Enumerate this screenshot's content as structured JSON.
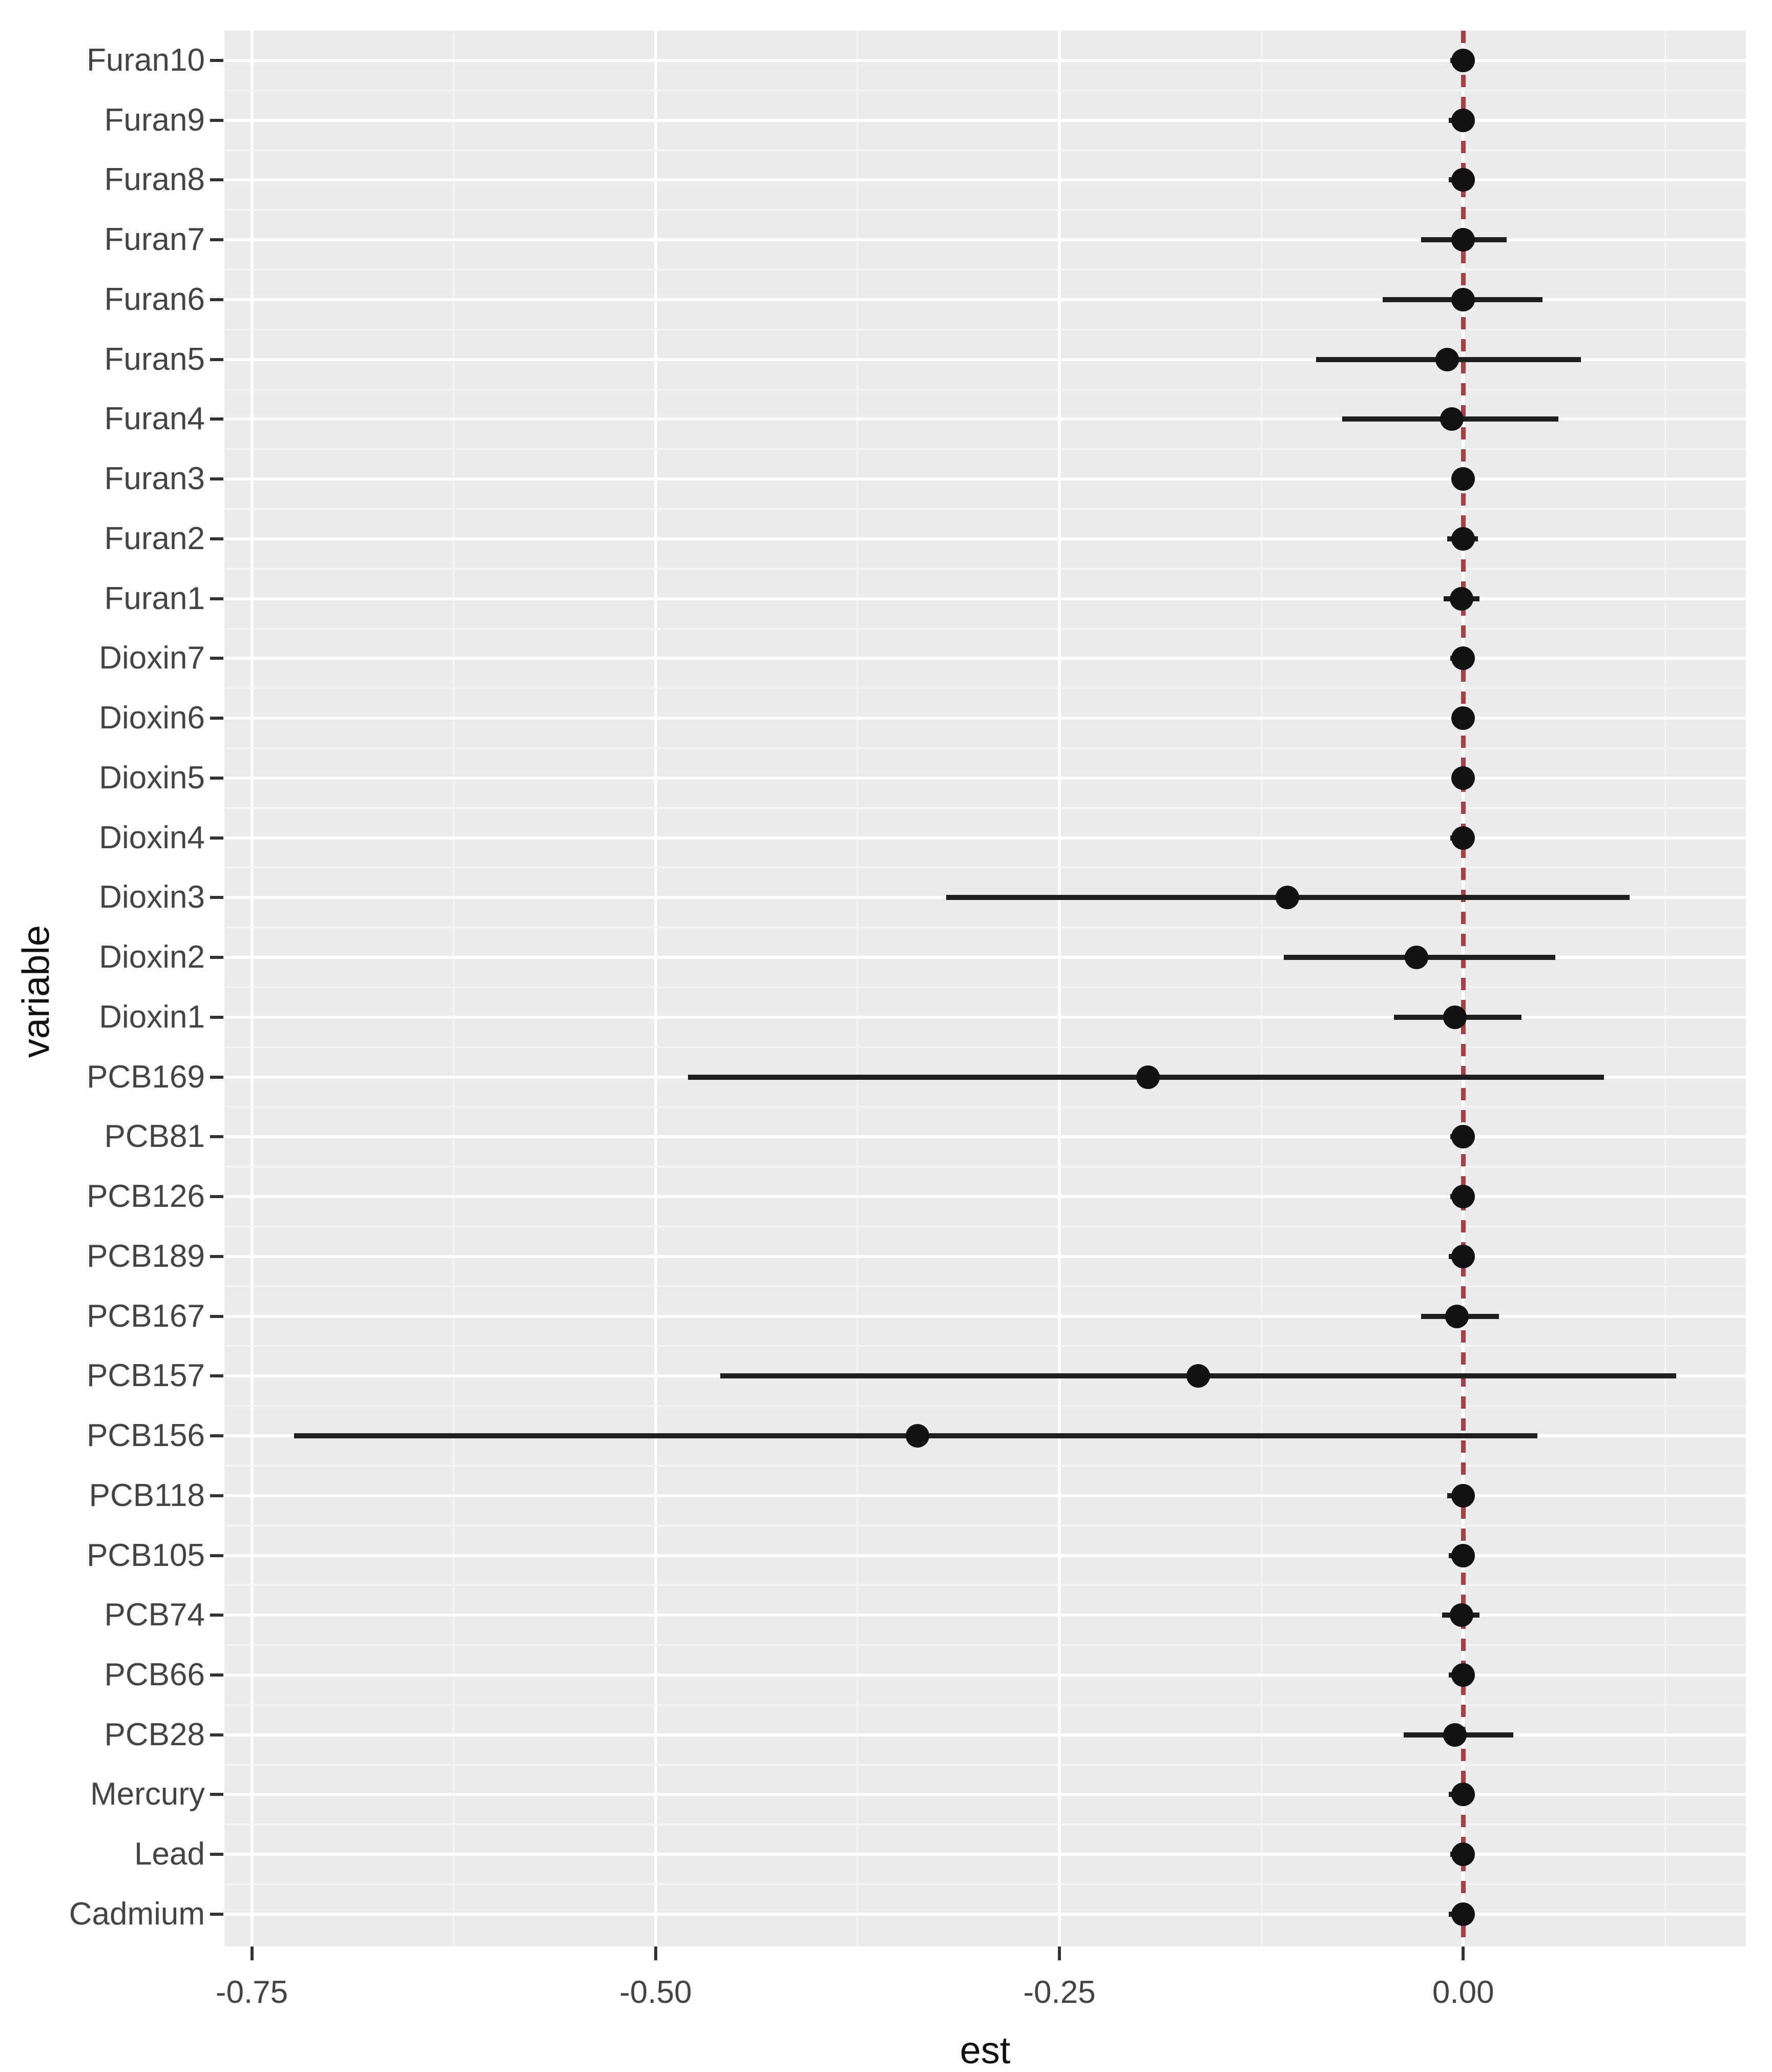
{
  "colors": {
    "page_bg": "#FFFFFF",
    "panel_bg": "#EBEBEB",
    "grid_major": "#FFFFFF",
    "grid_minor": "#F5F5F5",
    "marker": "#121212",
    "ci_line": "#1E1E1E",
    "reference_line": "#A64044",
    "tick_mark": "#333333",
    "tick_text": "#444444",
    "axis_title_text": "#111111"
  },
  "chart_data": {
    "type": "scatter",
    "subtype": "forest-plot-dot-with-error-bars",
    "title": "",
    "xlabel": "est",
    "ylabel": "variable",
    "xlim": [
      -0.767,
      0.175
    ],
    "grid": "on",
    "legend": "none",
    "x_tick_values": [
      -0.75,
      -0.5,
      -0.25,
      0.0
    ],
    "x_tick_labels": [
      "-0.75",
      "-0.50",
      "-0.25",
      "0.00"
    ],
    "x_minor_gridlines": [
      -0.625,
      -0.375,
      -0.125,
      0.125
    ],
    "reference_line_x": 0,
    "reference_line_style": "dashed",
    "categories_top_to_bottom": [
      "Furan10",
      "Furan9",
      "Furan8",
      "Furan7",
      "Furan6",
      "Furan5",
      "Furan4",
      "Furan3",
      "Furan2",
      "Furan1",
      "Dioxin7",
      "Dioxin6",
      "Dioxin5",
      "Dioxin4",
      "Dioxin3",
      "Dioxin2",
      "Dioxin1",
      "PCB169",
      "PCB81",
      "PCB126",
      "PCB189",
      "PCB167",
      "PCB157",
      "PCB156",
      "PCB118",
      "PCB105",
      "PCB74",
      "PCB66",
      "PCB28",
      "Mercury",
      "Lead",
      "Cadmium"
    ],
    "series": [
      {
        "name": "est",
        "points": [
          {
            "variable": "Furan10",
            "est": 0.0,
            "lo": -0.008,
            "hi": 0.007
          },
          {
            "variable": "Furan9",
            "est": 0.0,
            "lo": -0.009,
            "hi": 0.007
          },
          {
            "variable": "Furan8",
            "est": 0.0,
            "lo": -0.009,
            "hi": 0.007
          },
          {
            "variable": "Furan7",
            "est": 0.0,
            "lo": -0.026,
            "hi": 0.027
          },
          {
            "variable": "Furan6",
            "est": 0.0,
            "lo": -0.05,
            "hi": 0.049
          },
          {
            "variable": "Furan5",
            "est": -0.01,
            "lo": -0.091,
            "hi": 0.073
          },
          {
            "variable": "Furan4",
            "est": -0.007,
            "lo": -0.075,
            "hi": 0.059
          },
          {
            "variable": "Furan3",
            "est": 0.0,
            "lo": -0.007,
            "hi": 0.005
          },
          {
            "variable": "Furan2",
            "est": 0.0,
            "lo": -0.01,
            "hi": 0.009
          },
          {
            "variable": "Furan1",
            "est": -0.001,
            "lo": -0.012,
            "hi": 0.01
          },
          {
            "variable": "Dioxin7",
            "est": 0.0,
            "lo": -0.008,
            "hi": 0.006
          },
          {
            "variable": "Dioxin6",
            "est": 0.0,
            "lo": -0.007,
            "hi": 0.006
          },
          {
            "variable": "Dioxin5",
            "est": 0.0,
            "lo": -0.007,
            "hi": 0.006
          },
          {
            "variable": "Dioxin4",
            "est": 0.0,
            "lo": -0.008,
            "hi": 0.006
          },
          {
            "variable": "Dioxin3",
            "est": -0.109,
            "lo": -0.32,
            "hi": 0.103
          },
          {
            "variable": "Dioxin2",
            "est": -0.029,
            "lo": -0.111,
            "hi": 0.057
          },
          {
            "variable": "Dioxin1",
            "est": -0.005,
            "lo": -0.043,
            "hi": 0.036
          },
          {
            "variable": "PCB169",
            "est": -0.195,
            "lo": -0.48,
            "hi": 0.087
          },
          {
            "variable": "PCB81",
            "est": 0.0,
            "lo": -0.008,
            "hi": 0.006
          },
          {
            "variable": "PCB126",
            "est": 0.0,
            "lo": -0.008,
            "hi": 0.006
          },
          {
            "variable": "PCB189",
            "est": 0.0,
            "lo": -0.009,
            "hi": 0.007
          },
          {
            "variable": "PCB167",
            "est": -0.004,
            "lo": -0.026,
            "hi": 0.022
          },
          {
            "variable": "PCB157",
            "est": -0.164,
            "lo": -0.46,
            "hi": 0.132
          },
          {
            "variable": "PCB156",
            "est": -0.338,
            "lo": -0.724,
            "hi": 0.046
          },
          {
            "variable": "PCB118",
            "est": 0.0,
            "lo": -0.01,
            "hi": 0.007
          },
          {
            "variable": "PCB105",
            "est": 0.0,
            "lo": -0.009,
            "hi": 0.006
          },
          {
            "variable": "PCB74",
            "est": -0.001,
            "lo": -0.013,
            "hi": 0.01
          },
          {
            "variable": "PCB66",
            "est": 0.0,
            "lo": -0.009,
            "hi": 0.006
          },
          {
            "variable": "PCB28",
            "est": -0.005,
            "lo": -0.037,
            "hi": 0.031
          },
          {
            "variable": "Mercury",
            "est": 0.0,
            "lo": -0.009,
            "hi": 0.006
          },
          {
            "variable": "Lead",
            "est": 0.0,
            "lo": -0.008,
            "hi": 0.006
          },
          {
            "variable": "Cadmium",
            "est": 0.0,
            "lo": -0.009,
            "hi": 0.007
          }
        ]
      }
    ]
  }
}
